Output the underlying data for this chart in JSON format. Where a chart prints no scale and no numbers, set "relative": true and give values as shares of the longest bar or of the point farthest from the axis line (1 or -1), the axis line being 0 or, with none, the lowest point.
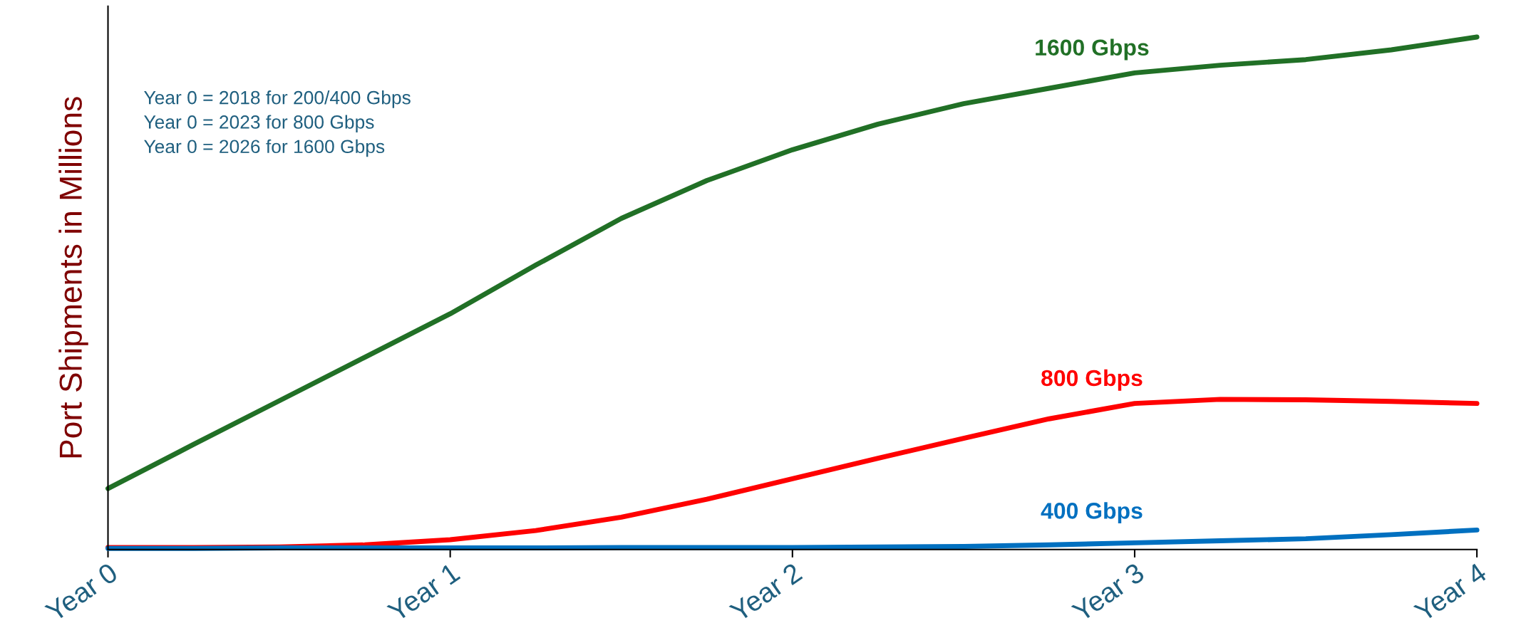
{
  "chart_data": {
    "type": "line",
    "relative": true,
    "ylabel": "Port Shipments in Millions",
    "categories": [
      "Year 0",
      null,
      null,
      null,
      "Year 1",
      null,
      null,
      null,
      "Year 2",
      null,
      null,
      null,
      "Year 3",
      null,
      null,
      null,
      "Year 4"
    ],
    "series": [
      {
        "name": "1600 Gbps",
        "color": "#217026",
        "values": [
          0.119,
          0.205,
          0.29,
          0.375,
          0.46,
          0.555,
          0.646,
          0.72,
          0.78,
          0.83,
          0.87,
          0.9,
          0.93,
          0.945,
          0.956,
          0.975,
          1.0
        ]
      },
      {
        "name": "800 Gbps",
        "color": "#ff0000",
        "values": [
          0.004,
          0.004,
          0.005,
          0.009,
          0.019,
          0.037,
          0.063,
          0.098,
          0.138,
          0.178,
          0.217,
          0.255,
          0.285,
          0.293,
          0.292,
          0.289,
          0.285
        ]
      },
      {
        "name": "400 Gbps",
        "color": "#0070c0",
        "values": [
          0.002,
          0.002,
          0.003,
          0.003,
          0.003,
          0.003,
          0.004,
          0.004,
          0.004,
          0.005,
          0.006,
          0.009,
          0.013,
          0.017,
          0.021,
          0.029,
          0.038
        ]
      }
    ],
    "annotations": [
      "Year 0 = 2018 for 200/400 Gbps",
      "Year 0 = 2023 for 800 Gbps",
      "Year 0 = 2026 for 1600 Gbps"
    ],
    "grid": false,
    "legend": false,
    "marker": "none",
    "line_style": "solid"
  }
}
